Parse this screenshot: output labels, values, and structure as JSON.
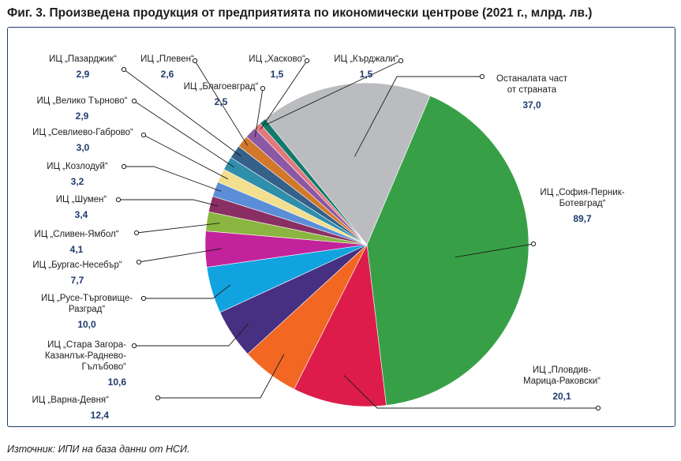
{
  "title": "Фиг. 3. Произведена продукция от предприятията по икономически центрове (2021 г., млрд. лв.)",
  "source": "Източник: ИПИ на база данни от НСИ.",
  "chart_data": {
    "type": "pie",
    "title": "Фиг. 3. Произведена продукция от предприятията по икономически центрове (2021 г., млрд. лв.)",
    "unit": "млрд. лв.",
    "slices": [
      {
        "label": [
          "ИЦ „София-Перник-",
          "Ботевград“"
        ],
        "value": 89.7,
        "value_text": "89,7",
        "color": "#37a047"
      },
      {
        "label": [
          "ИЦ „Пловдив-",
          "Марица-Раковски“"
        ],
        "value": 20.1,
        "value_text": "20,1",
        "color": "#dd1c4c"
      },
      {
        "label": [
          "ИЦ „Варна-Девня“"
        ],
        "value": 12.4,
        "value_text": "12,4",
        "color": "#f26722"
      },
      {
        "label": [
          "ИЦ „Стара Загора-",
          "Казанлък-Раднево-",
          "Гълъбово“"
        ],
        "value": 10.6,
        "value_text": "10,6",
        "color": "#472f82"
      },
      {
        "label": [
          "ИЦ „Русе-Търговище-",
          "Разград“"
        ],
        "value": 10.0,
        "value_text": "10,0",
        "color": "#11a3df"
      },
      {
        "label": [
          "ИЦ „Бургас-Несебър“"
        ],
        "value": 7.7,
        "value_text": "7,7",
        "color": "#c2229b"
      },
      {
        "label": [
          "ИЦ „Сливен-Ямбол“"
        ],
        "value": 4.1,
        "value_text": "4,1",
        "color": "#8bb541"
      },
      {
        "label": [
          "ИЦ „Шумен“"
        ],
        "value": 3.4,
        "value_text": "3,4",
        "color": "#8a2f63"
      },
      {
        "label": [
          "ИЦ „Козлодуй“"
        ],
        "value": 3.2,
        "value_text": "3,2",
        "color": "#5b8ed6"
      },
      {
        "label": [
          "ИЦ „Севлиево-Габрово“"
        ],
        "value": 3.0,
        "value_text": "3,0",
        "color": "#f2df8f"
      },
      {
        "label": [
          "ИЦ „Велико Търново“"
        ],
        "value": 2.9,
        "value_text": "2,9",
        "color": "#2f8eaa"
      },
      {
        "label": [
          "ИЦ „Пазарджик“"
        ],
        "value": 2.9,
        "value_text": "2,9",
        "color": "#356089"
      },
      {
        "label": [
          "ИЦ „Плевен“"
        ],
        "value": 2.6,
        "value_text": "2,6",
        "color": "#d2782a"
      },
      {
        "label": [
          "ИЦ „Благоевград“"
        ],
        "value": 2.5,
        "value_text": "2,5",
        "color": "#8c58a3"
      },
      {
        "label": [
          "ИЦ „Хасково“"
        ],
        "value": 1.5,
        "value_text": "1,5",
        "color": "#e3777b"
      },
      {
        "label": [
          "ИЦ „Кърджали“"
        ],
        "value": 1.5,
        "value_text": "1,5",
        "color": "#127a6a"
      },
      {
        "label": [
          "Останалата част",
          "от страната"
        ],
        "value": 37.0,
        "value_text": "37,0",
        "color": "#bbbcc0"
      }
    ]
  }
}
